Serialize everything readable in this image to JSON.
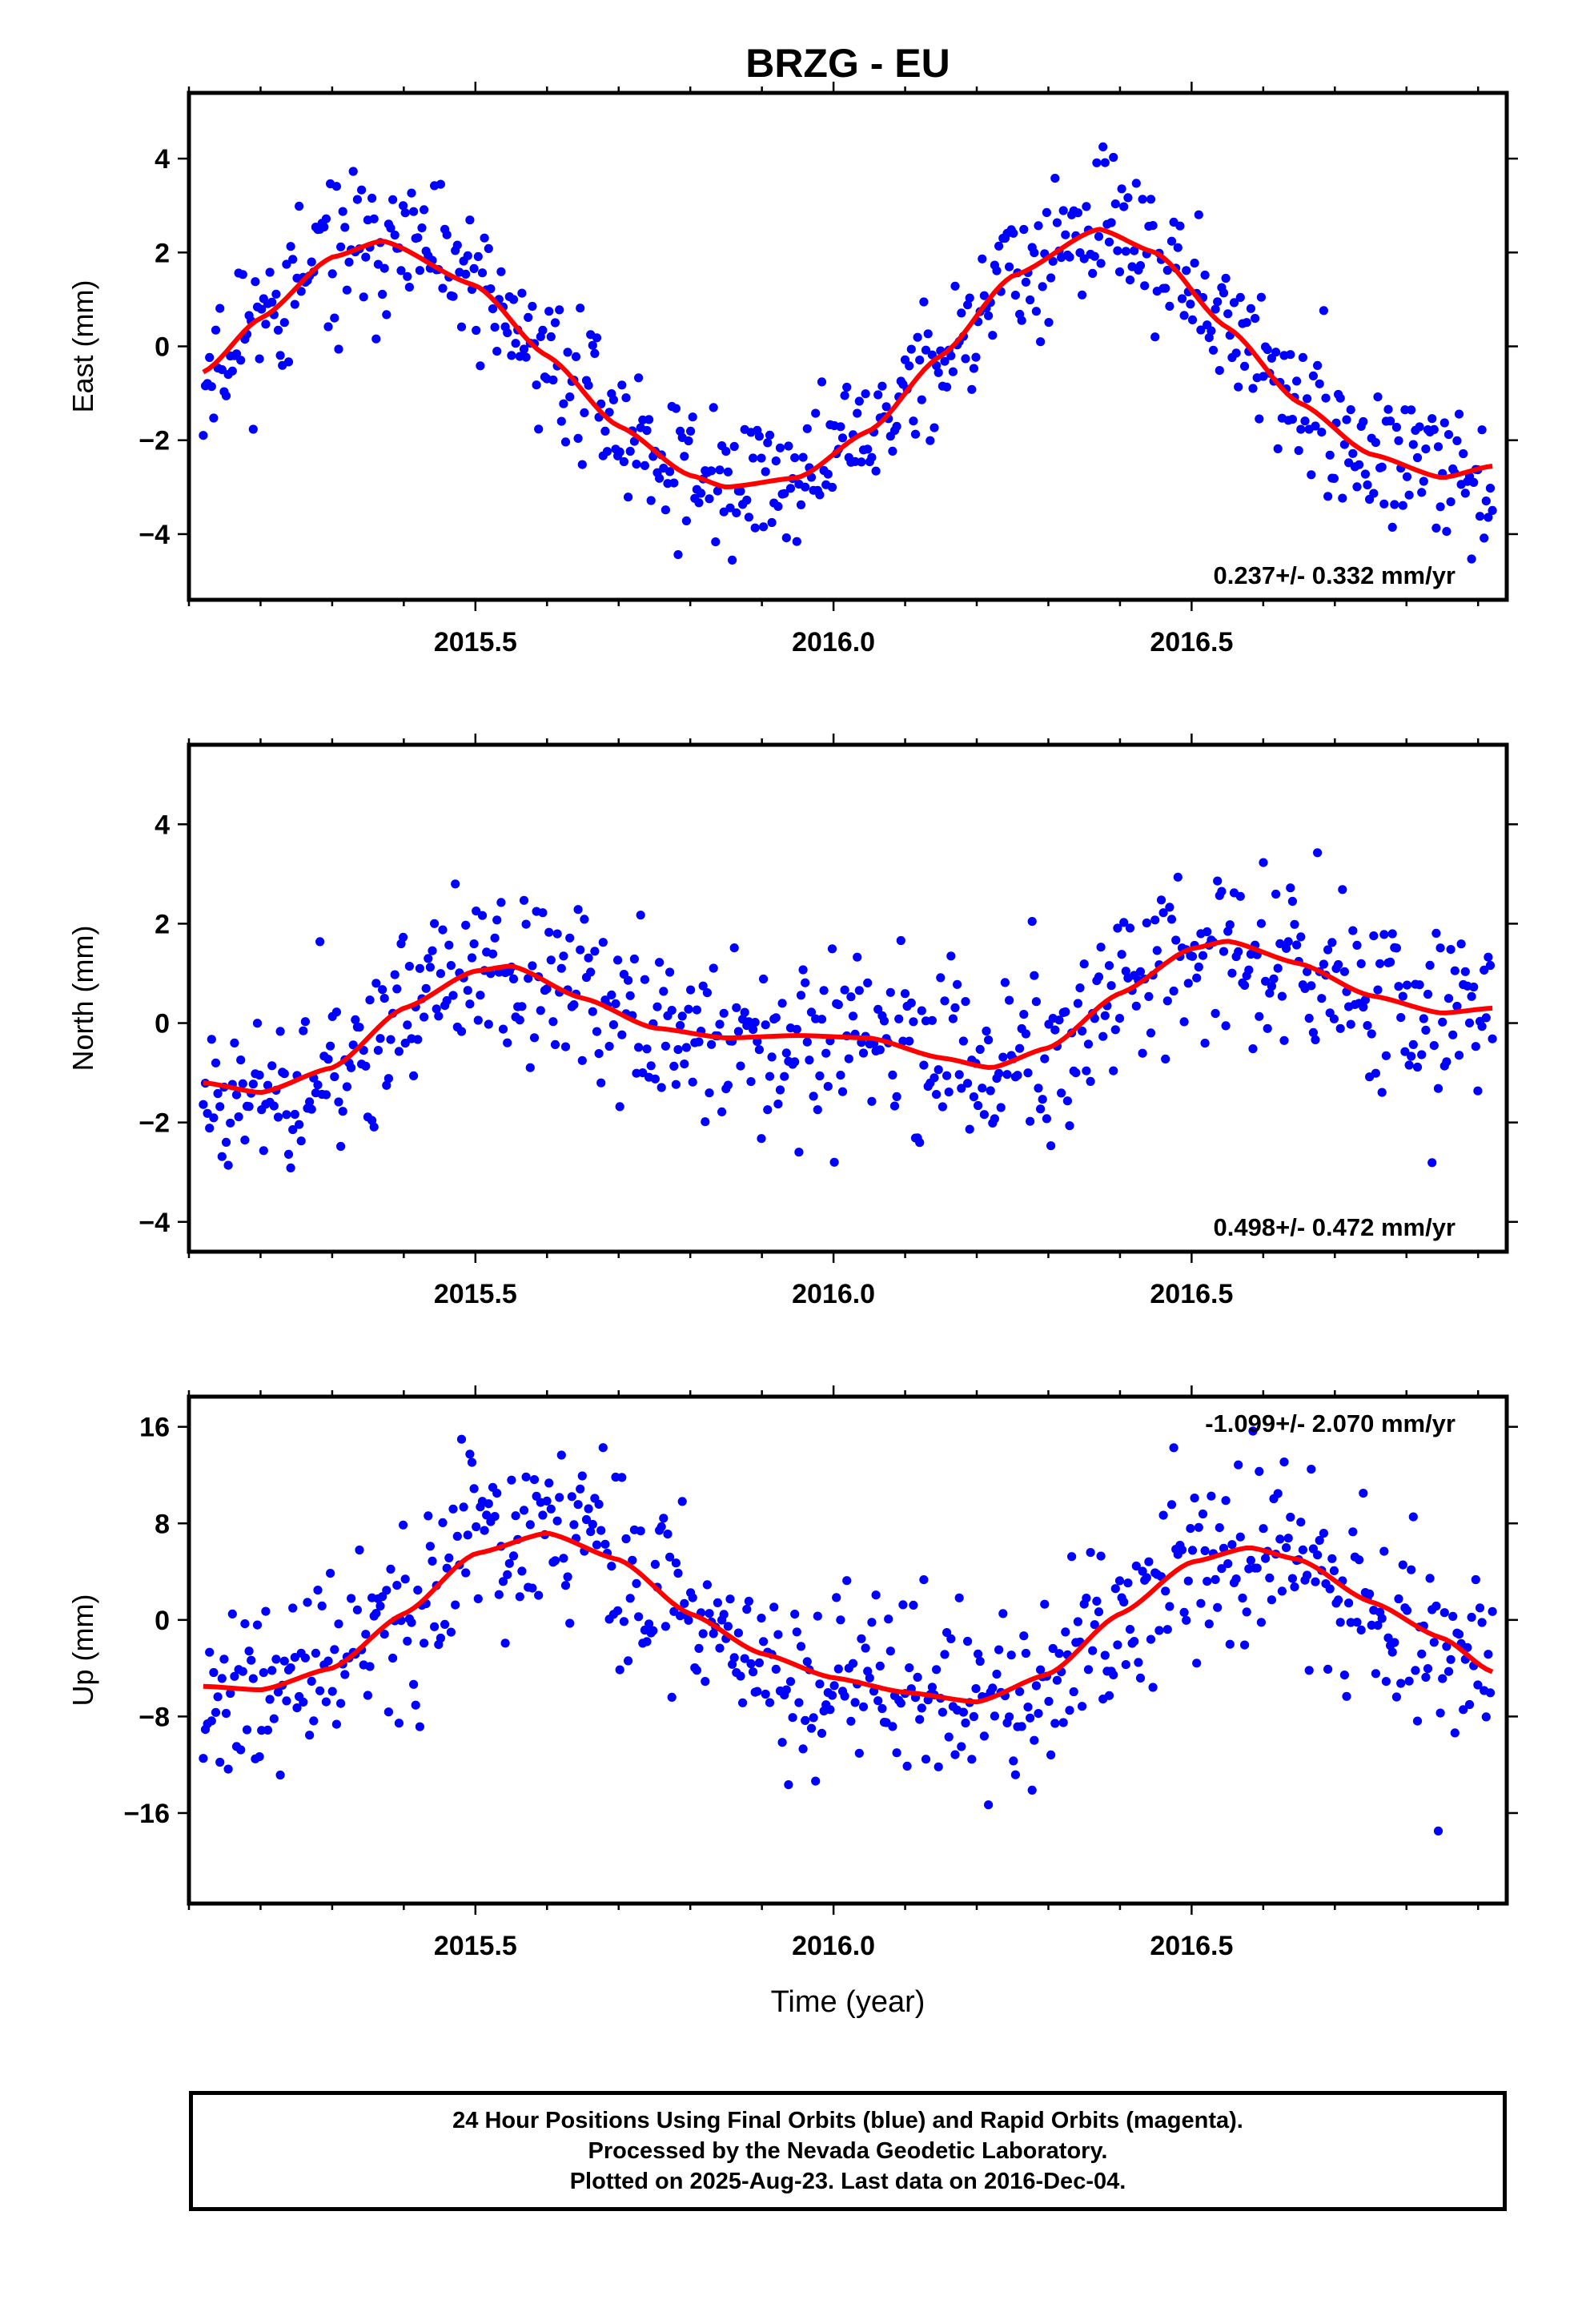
{
  "title": "BRZG - EU",
  "colors": {
    "points": "#0000ff",
    "fit": "#ff0000",
    "axes": "#000000"
  },
  "chart_data": [
    {
      "type": "scatter",
      "component": "East",
      "ylabel": "East (mm)",
      "xlabel": "",
      "xlim": [
        2015.1,
        2016.94
      ],
      "ylim": [
        -5.4,
        5.4
      ],
      "yticks": [
        -4,
        -2,
        0,
        2,
        4
      ],
      "ytick_labels": [
        "−4",
        "−2",
        "0",
        "2",
        "4"
      ],
      "xticks": [
        2015.5,
        2016.0,
        2016.5
      ],
      "xtick_labels": [
        "2015.5",
        "2016.0",
        "2016.5"
      ],
      "rate_label": "0.237+/- 0.332 mm/yr",
      "rate_position": "bottom-right",
      "fit_model": {
        "offset": -0.2,
        "rate": 0.237,
        "amp1": 2.6,
        "phase1_peak": 0.37,
        "amp2": 0.25,
        "phase2_peak": 0.12
      },
      "fit_curve": {
        "x": [
          2015.12,
          2015.2,
          2015.3,
          2015.37,
          2015.5,
          2015.6,
          2015.7,
          2015.8,
          2015.85,
          2015.95,
          2016.05,
          2016.15,
          2016.25,
          2016.37,
          2016.45,
          2016.55,
          2016.65,
          2016.75,
          2016.85,
          2016.92
        ],
        "y": [
          -0.55,
          0.6,
          1.9,
          2.25,
          1.3,
          -0.2,
          -1.7,
          -2.75,
          -3.0,
          -2.8,
          -1.8,
          -0.2,
          1.5,
          2.5,
          2.0,
          0.4,
          -1.2,
          -2.3,
          -2.8,
          -2.55
        ]
      },
      "point_count": 620,
      "scatter_sd": 0.75,
      "seed": 11
    },
    {
      "type": "scatter",
      "component": "North",
      "ylabel": "North (mm)",
      "xlabel": "",
      "xlim": [
        2015.1,
        2016.94
      ],
      "ylim": [
        -4.6,
        5.6
      ],
      "yticks": [
        -4,
        -2,
        0,
        2,
        4
      ],
      "ytick_labels": [
        "−4",
        "−2",
        "0",
        "2",
        "4"
      ],
      "xticks": [
        2015.5,
        2016.0,
        2016.5
      ],
      "xtick_labels": [
        "2015.5",
        "2016.0",
        "2016.5"
      ],
      "rate_label": "0.498+/- 0.472 mm/yr",
      "rate_position": "bottom-right",
      "fit_curve": {
        "x": [
          2015.12,
          2015.2,
          2015.3,
          2015.4,
          2015.5,
          2015.55,
          2015.65,
          2015.75,
          2015.85,
          2015.95,
          2016.05,
          2016.15,
          2016.22,
          2016.3,
          2016.4,
          2016.5,
          2016.55,
          2016.65,
          2016.75,
          2016.85,
          2016.92
        ],
        "y": [
          -1.2,
          -1.4,
          -0.9,
          0.3,
          1.05,
          1.15,
          0.5,
          -0.1,
          -0.3,
          -0.25,
          -0.3,
          -0.7,
          -0.9,
          -0.5,
          0.6,
          1.5,
          1.65,
          1.2,
          0.55,
          0.2,
          0.3
        ]
      },
      "point_count": 620,
      "scatter_sd": 0.85,
      "seed": 23
    },
    {
      "type": "scatter",
      "component": "Up",
      "ylabel": "Up (mm)",
      "xlabel": "Time (year)",
      "xlim": [
        2015.1,
        2016.94
      ],
      "ylim": [
        -23.5,
        18.5
      ],
      "yticks": [
        -16,
        -8,
        0,
        8,
        16
      ],
      "ytick_labels": [
        "−16",
        "−8",
        "0",
        "8",
        "16"
      ],
      "xticks": [
        2015.5,
        2016.0,
        2016.5
      ],
      "xtick_labels": [
        "2015.5",
        "2016.0",
        "2016.5"
      ],
      "rate_label": "-1.099+/- 2.070 mm/yr",
      "rate_position": "top-right",
      "fit_curve": {
        "x": [
          2015.12,
          2015.2,
          2015.3,
          2015.4,
          2015.5,
          2015.6,
          2015.7,
          2015.8,
          2015.9,
          2016.0,
          2016.1,
          2016.2,
          2016.3,
          2016.4,
          2016.5,
          2016.58,
          2016.65,
          2016.75,
          2016.85,
          2016.92
        ],
        "y": [
          -5.5,
          -5.8,
          -4.0,
          0.5,
          5.5,
          7.2,
          5.0,
          0.5,
          -2.8,
          -4.8,
          -6.0,
          -6.8,
          -4.5,
          0.5,
          4.8,
          6.0,
          5.0,
          1.5,
          -1.5,
          -4.3
        ]
      },
      "point_count": 620,
      "scatter_sd": 3.8,
      "seed": 37
    }
  ],
  "footer": {
    "line1": "24 Hour Positions Using Final Orbits (blue) and Rapid Orbits (magenta).",
    "line2": "Processed by the Nevada Geodetic Laboratory.",
    "line3": "Plotted on 2025-Aug-23. Last data on 2016-Dec-04."
  }
}
